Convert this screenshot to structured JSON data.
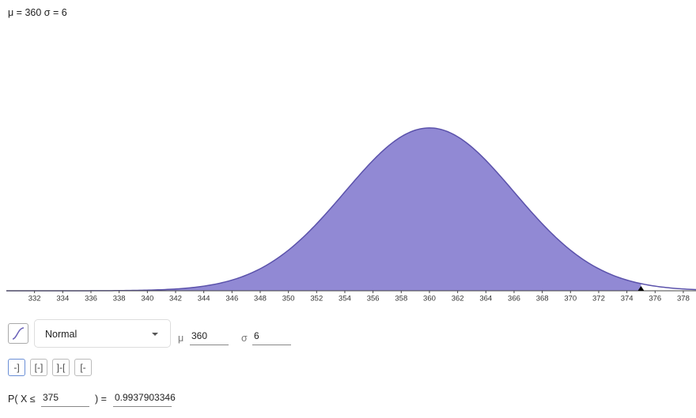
{
  "header": {
    "title": "μ = 360 σ = 6"
  },
  "chart_data": {
    "type": "normal",
    "mu": 360,
    "sigma": 6,
    "upper": 375,
    "xlim": [
      330,
      378.9
    ],
    "ylim": [
      0,
      0.07
    ],
    "xticks": [
      332,
      334,
      336,
      338,
      340,
      342,
      344,
      346,
      348,
      350,
      352,
      354,
      356,
      358,
      360,
      362,
      364,
      366,
      368,
      370,
      372,
      374,
      376,
      378
    ],
    "color": "#9189d4",
    "line_color": "#5b52ab"
  },
  "controls": {
    "distribution": "Normal",
    "mu_label": "μ",
    "sigma_label": "σ"
  },
  "probability": {
    "prefix": "P( X ≤",
    "suffix": ") =",
    "result": "0.9937903346"
  }
}
